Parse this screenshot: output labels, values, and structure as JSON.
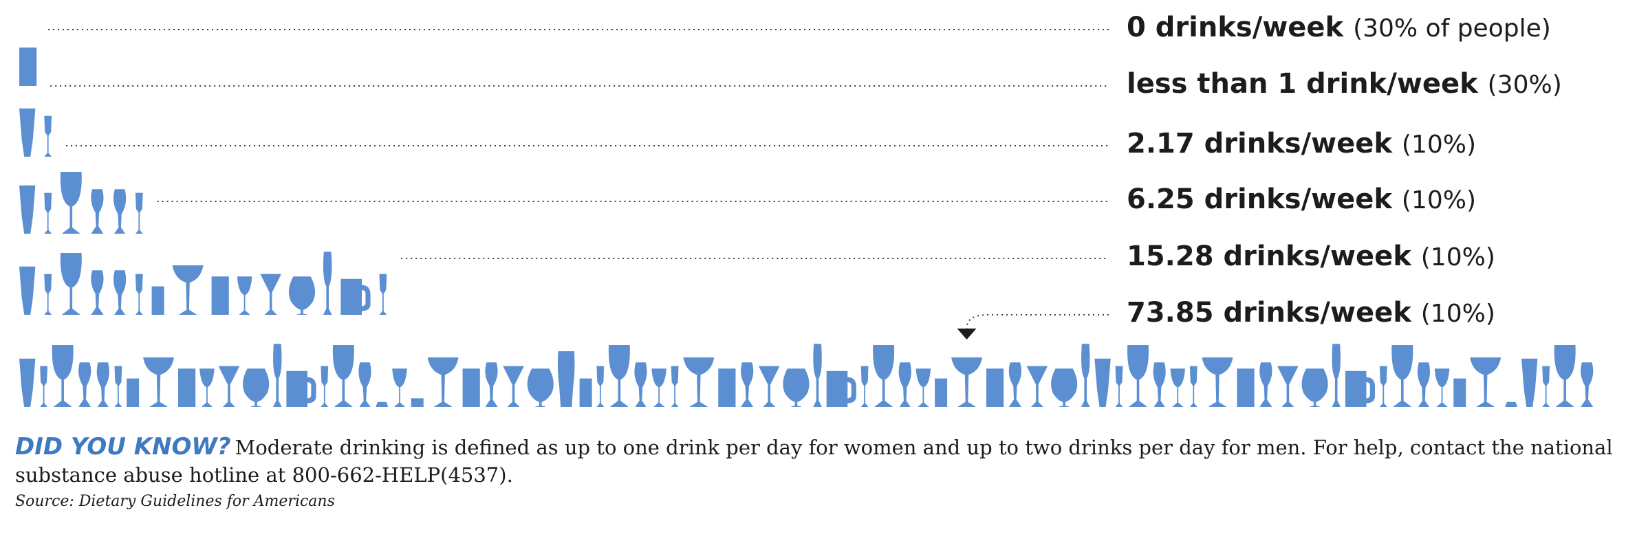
{
  "chart_data": {
    "type": "pictograph",
    "unit": "drinks/week",
    "categories": [
      {
        "label": "0 drinks/week",
        "share": "(30% of people)",
        "drinks_per_week": 0,
        "percent": 30
      },
      {
        "label": "less than 1 drink/week",
        "share": "(30%)",
        "drinks_per_week": 0.5,
        "percent": 30
      },
      {
        "label": "2.17 drinks/week",
        "share": "(10%)",
        "drinks_per_week": 2.17,
        "percent": 10
      },
      {
        "label": "6.25 drinks/week",
        "share": "(10%)",
        "drinks_per_week": 6.25,
        "percent": 10
      },
      {
        "label": "15.28 drinks/week",
        "share": "(10%)",
        "drinks_per_week": 15.28,
        "percent": 10
      },
      {
        "label": "73.85 drinks/week",
        "share": "(10%)",
        "drinks_per_week": 73.85,
        "percent": 10
      }
    ],
    "colors": {
      "glass": "#5b8fd1",
      "text": "#1c1c1c",
      "accent": "#3f79bf"
    }
  },
  "footer": {
    "did_you_know": "DID YOU KNOW?",
    "note": "Moderate drinking is defined as up to one drink per day for women and up to two drinks per day for men. For help, contact the national substance abuse hotline at 800-662-HELP(4537).",
    "source": "Source: Dietary Guidelines for Americans"
  }
}
